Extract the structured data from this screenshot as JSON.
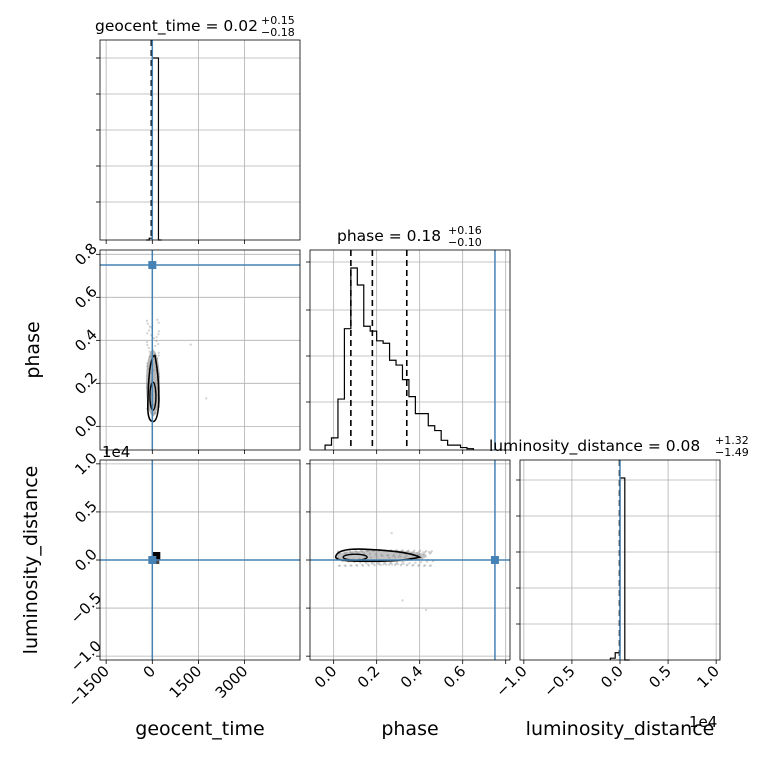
{
  "chart_data": {
    "type": "corner",
    "parameters": [
      "geocent_time",
      "phase",
      "luminosity_distance"
    ],
    "truths": {
      "geocent_time": 0,
      "phase": 0.75,
      "luminosity_distance": 0
    },
    "titles": [
      {
        "param": "geocent_time",
        "text": "geocent_time = 0.02",
        "plus": "+0.15",
        "minus": "−0.18"
      },
      {
        "param": "phase",
        "text": "phase = 0.18",
        "plus": "+0.16",
        "minus": "−0.10"
      },
      {
        "param": "luminosity_distance",
        "text": "luminosity_distance = 0.08",
        "plus": "+1.32",
        "minus": "−1.49"
      }
    ],
    "axes": {
      "geocent_time": {
        "range": [
          -1700,
          4800
        ],
        "ticks": [
          -1500,
          0,
          1500,
          3000
        ],
        "ticklabels": [
          "−1500",
          "0",
          "1500",
          "3000"
        ],
        "label": "geocent_time"
      },
      "phase": {
        "range": [
          -0.11,
          0.82
        ],
        "ticks": [
          0.0,
          0.2,
          0.4,
          0.6,
          0.8
        ],
        "ticklabels": [
          "0.0",
          "0.2",
          "0.4",
          "0.6",
          "0.8"
        ],
        "xticks": [
          0.0,
          0.2,
          0.4,
          0.6
        ],
        "xticklabels": [
          "0.0",
          "0.2",
          "0.4",
          "0.6"
        ],
        "label": "phase"
      },
      "luminosity_distance": {
        "range": [
          -1.04,
          1.04
        ],
        "ticks": [
          -1.0,
          -0.5,
          0.0,
          0.5,
          1.0
        ],
        "ticklabels": [
          "−1.0",
          "−0.5",
          "0.0",
          "0.5",
          "1.0"
        ],
        "label": "luminosity_distance",
        "offset": "1e4"
      }
    },
    "hist_geocent_time": {
      "edges": [
        -200,
        -100,
        0,
        100,
        200,
        300
      ],
      "counts": [
        0,
        0.01,
        1.0,
        1.0,
        0
      ]
    },
    "hist_phase": {
      "edges": [
        -0.04,
        -0.01,
        0.02,
        0.05,
        0.08,
        0.11,
        0.14,
        0.17,
        0.2,
        0.23,
        0.26,
        0.29,
        0.32,
        0.35,
        0.38,
        0.41,
        0.44,
        0.47,
        0.5,
        0.53,
        0.56,
        0.59,
        0.62,
        0.65
      ],
      "counts": [
        0.02,
        0.05,
        0.21,
        0.5,
        0.75,
        0.68,
        0.51,
        0.49,
        0.45,
        0.44,
        0.37,
        0.35,
        0.29,
        0.22,
        0.15,
        0.15,
        0.1,
        0.08,
        0.04,
        0.02,
        0.02,
        0.01,
        0.005
      ],
      "quantiles": [
        0.08,
        0.18,
        0.34
      ]
    },
    "hist_luminosity_distance": {
      "edges": [
        -0.1,
        -0.05,
        0.0,
        0.05,
        0.1
      ],
      "counts": [
        0.01,
        0.04,
        1.0,
        0
      ]
    }
  }
}
